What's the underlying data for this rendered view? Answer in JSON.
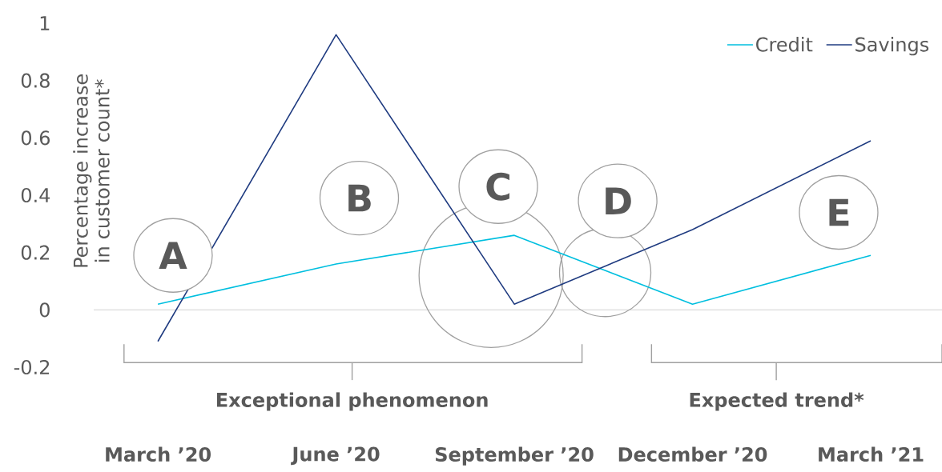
{
  "chart_data": {
    "type": "line",
    "ylabel": "Percentage increase in customer count*",
    "categories": [
      "March ’20",
      "June ’20",
      "September ’20",
      "December ’20",
      "March ’21"
    ],
    "series": [
      {
        "name": "Credit",
        "color": "#00bfdf",
        "values": [
          0.02,
          0.16,
          0.26,
          0.02,
          0.19
        ]
      },
      {
        "name": "Savings",
        "color": "#1f3b80",
        "values": [
          -0.11,
          0.96,
          0.02,
          0.28,
          0.59
        ]
      }
    ],
    "ylim": [
      -0.2,
      1
    ],
    "yticks": [
      -0.2,
      0,
      0.2,
      0.4,
      0.6,
      0.8,
      1
    ],
    "ref_lines": [
      {
        "axis": "y",
        "value": 0,
        "color": "#d9d9d9"
      }
    ],
    "legend": "top right",
    "grid": false,
    "marker": "none",
    "line_style": "solid",
    "annotations": [
      "A",
      "B",
      "C",
      "D",
      "E",
      "Exceptional phenomenon",
      "Expected trend*"
    ]
  }
}
